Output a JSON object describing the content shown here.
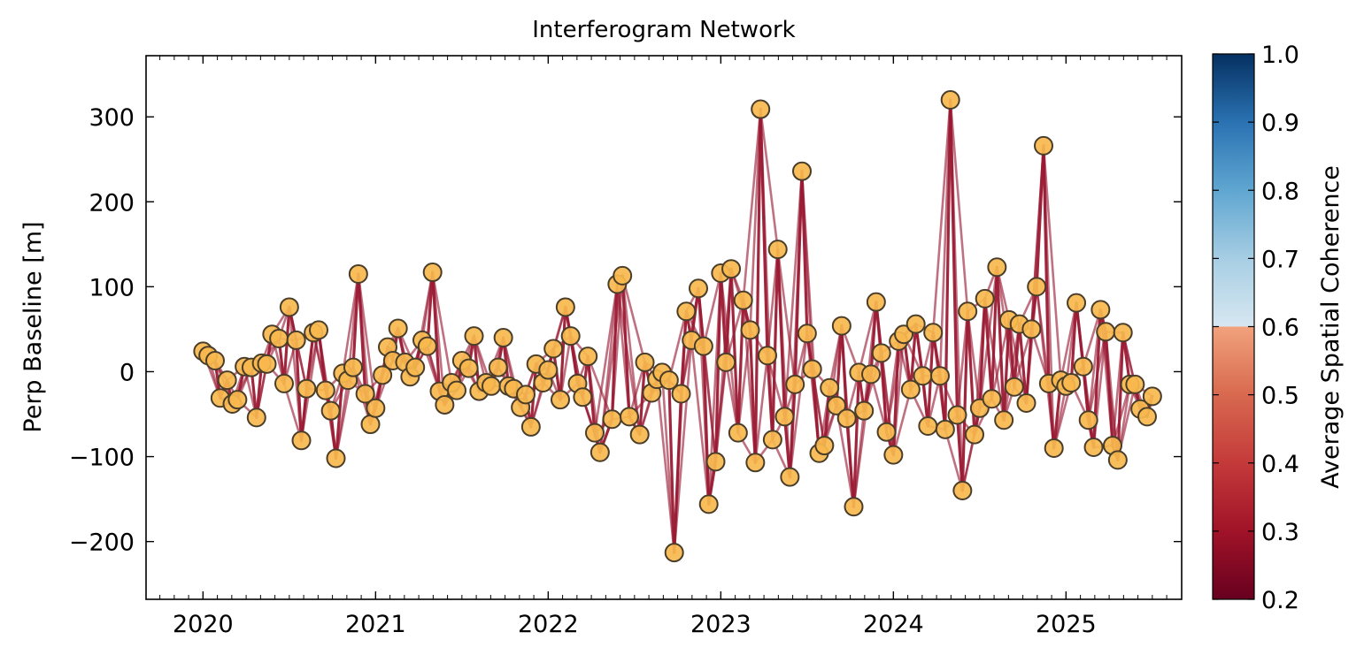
{
  "chart_data": {
    "type": "network",
    "title": "Interferogram Network",
    "ylabel": "Perp Baseline [m]",
    "xlabel": "",
    "x_ticks": [
      2020,
      2021,
      2022,
      2023,
      2024,
      2025
    ],
    "y_ticks": [
      -200,
      -100,
      0,
      100,
      200,
      300
    ],
    "x_range": [
      2019.67,
      2025.67
    ],
    "ylim": [
      -268,
      372
    ],
    "grid": false,
    "colorbar": {
      "label": "Average Spatial Coherence",
      "range": [
        0.2,
        1.0
      ],
      "ticks": [
        0.2,
        0.3,
        0.4,
        0.5,
        0.6,
        0.7,
        0.8,
        0.9,
        1.0
      ],
      "colors": [
        "#67001f",
        "#b2182b",
        "#d6604d",
        "#f4a582",
        "#fddbc7",
        "#d1e5f0",
        "#92c5de",
        "#4393c3",
        "#2166ac",
        "#053061"
      ]
    },
    "edge_color": "#9a1a33",
    "node_fill": "#f8b84e",
    "node_edge": "#4a3e2a",
    "acquisitions": [
      [
        2020.0,
        24
      ],
      [
        2020.03,
        19
      ],
      [
        2020.07,
        13
      ],
      [
        2020.1,
        -31
      ],
      [
        2020.14,
        -10
      ],
      [
        2020.17,
        -38
      ],
      [
        2020.2,
        -33
      ],
      [
        2020.24,
        6
      ],
      [
        2020.28,
        5
      ],
      [
        2020.31,
        -54
      ],
      [
        2020.34,
        10
      ],
      [
        2020.37,
        9
      ],
      [
        2020.4,
        44
      ],
      [
        2020.44,
        39
      ],
      [
        2020.47,
        -14
      ],
      [
        2020.5,
        76
      ],
      [
        2020.54,
        37
      ],
      [
        2020.57,
        -81
      ],
      [
        2020.6,
        -20
      ],
      [
        2020.64,
        46
      ],
      [
        2020.67,
        49
      ],
      [
        2020.71,
        -22
      ],
      [
        2020.74,
        -46
      ],
      [
        2020.77,
        -102
      ],
      [
        2020.81,
        -2
      ],
      [
        2020.84,
        -10
      ],
      [
        2020.87,
        5
      ],
      [
        2020.9,
        115
      ],
      [
        2020.94,
        -26
      ],
      [
        2020.97,
        -62
      ],
      [
        2021.0,
        -43
      ],
      [
        2021.04,
        -4
      ],
      [
        2021.07,
        29
      ],
      [
        2021.1,
        13
      ],
      [
        2021.13,
        51
      ],
      [
        2021.17,
        11
      ],
      [
        2021.2,
        -6
      ],
      [
        2021.23,
        5
      ],
      [
        2021.27,
        37
      ],
      [
        2021.3,
        30
      ],
      [
        2021.33,
        117
      ],
      [
        2021.37,
        -23
      ],
      [
        2021.4,
        -39
      ],
      [
        2021.44,
        -13
      ],
      [
        2021.47,
        -22
      ],
      [
        2021.5,
        13
      ],
      [
        2021.54,
        4
      ],
      [
        2021.57,
        42
      ],
      [
        2021.6,
        -23
      ],
      [
        2021.64,
        -13
      ],
      [
        2021.67,
        -17
      ],
      [
        2021.71,
        5
      ],
      [
        2021.74,
        40
      ],
      [
        2021.77,
        -17
      ],
      [
        2021.8,
        -20
      ],
      [
        2021.84,
        -42
      ],
      [
        2021.87,
        -27
      ],
      [
        2021.9,
        -65
      ],
      [
        2021.93,
        9
      ],
      [
        2021.97,
        -13
      ],
      [
        2022.0,
        2
      ],
      [
        2022.03,
        27
      ],
      [
        2022.07,
        -33
      ],
      [
        2022.1,
        76
      ],
      [
        2022.13,
        42
      ],
      [
        2022.17,
        -14
      ],
      [
        2022.2,
        -30
      ],
      [
        2022.23,
        18
      ],
      [
        2022.27,
        -72
      ],
      [
        2022.3,
        -95
      ],
      [
        2022.37,
        -56
      ],
      [
        2022.4,
        103
      ],
      [
        2022.43,
        113
      ],
      [
        2022.47,
        -53
      ],
      [
        2022.53,
        -74
      ],
      [
        2022.56,
        11
      ],
      [
        2022.6,
        -25
      ],
      [
        2022.63,
        -9
      ],
      [
        2022.66,
        -1
      ],
      [
        2022.7,
        -10
      ],
      [
        2022.73,
        -213
      ],
      [
        2022.77,
        -26
      ],
      [
        2022.8,
        71
      ],
      [
        2022.83,
        37
      ],
      [
        2022.87,
        98
      ],
      [
        2022.9,
        30
      ],
      [
        2022.93,
        -156
      ],
      [
        2022.97,
        -106
      ],
      [
        2023.0,
        116
      ],
      [
        2023.03,
        11
      ],
      [
        2023.06,
        121
      ],
      [
        2023.1,
        -72
      ],
      [
        2023.13,
        84
      ],
      [
        2023.17,
        49
      ],
      [
        2023.2,
        -107
      ],
      [
        2023.23,
        309
      ],
      [
        2023.27,
        19
      ],
      [
        2023.3,
        -80
      ],
      [
        2023.33,
        144
      ],
      [
        2023.37,
        -53
      ],
      [
        2023.4,
        -124
      ],
      [
        2023.43,
        -15
      ],
      [
        2023.47,
        236
      ],
      [
        2023.5,
        45
      ],
      [
        2023.53,
        3
      ],
      [
        2023.57,
        -96
      ],
      [
        2023.6,
        -87
      ],
      [
        2023.63,
        -19
      ],
      [
        2023.67,
        -40
      ],
      [
        2023.7,
        54
      ],
      [
        2023.73,
        -55
      ],
      [
        2023.77,
        -159
      ],
      [
        2023.8,
        -1
      ],
      [
        2023.83,
        -46
      ],
      [
        2023.87,
        -3
      ],
      [
        2023.9,
        82
      ],
      [
        2023.93,
        22
      ],
      [
        2023.96,
        -71
      ],
      [
        2024.0,
        -98
      ],
      [
        2024.03,
        36
      ],
      [
        2024.06,
        44
      ],
      [
        2024.1,
        -21
      ],
      [
        2024.13,
        56
      ],
      [
        2024.17,
        -5
      ],
      [
        2024.2,
        -64
      ],
      [
        2024.23,
        46
      ],
      [
        2024.27,
        -5
      ],
      [
        2024.3,
        -68
      ],
      [
        2024.33,
        320
      ],
      [
        2024.37,
        -51
      ],
      [
        2024.4,
        -140
      ],
      [
        2024.43,
        71
      ],
      [
        2024.47,
        -74
      ],
      [
        2024.5,
        -43
      ],
      [
        2024.53,
        86
      ],
      [
        2024.57,
        -32
      ],
      [
        2024.6,
        123
      ],
      [
        2024.64,
        -57
      ],
      [
        2024.67,
        61
      ],
      [
        2024.7,
        -18
      ],
      [
        2024.73,
        56
      ],
      [
        2024.77,
        -37
      ],
      [
        2024.8,
        50
      ],
      [
        2024.83,
        100
      ],
      [
        2024.87,
        266
      ],
      [
        2024.9,
        -14
      ],
      [
        2024.93,
        -90
      ],
      [
        2024.97,
        -10
      ],
      [
        2025.0,
        -17
      ],
      [
        2025.03,
        -13
      ],
      [
        2025.06,
        81
      ],
      [
        2025.1,
        6
      ],
      [
        2025.13,
        -57
      ],
      [
        2025.16,
        -89
      ],
      [
        2025.2,
        73
      ],
      [
        2025.23,
        47
      ],
      [
        2025.27,
        -87
      ],
      [
        2025.3,
        -104
      ],
      [
        2025.33,
        46
      ],
      [
        2025.37,
        -15
      ],
      [
        2025.4,
        -15
      ],
      [
        2025.43,
        -44
      ],
      [
        2025.47,
        -53
      ],
      [
        2025.5,
        -29
      ]
    ]
  }
}
